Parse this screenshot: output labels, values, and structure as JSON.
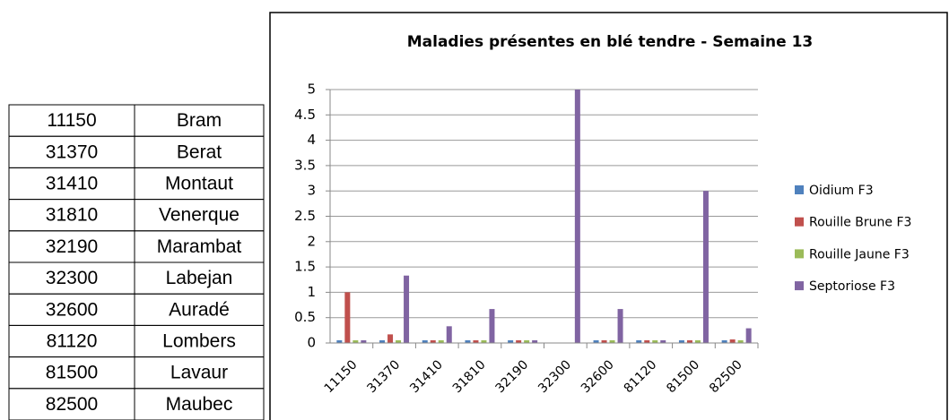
{
  "table": {
    "rows": [
      [
        "11150",
        "Bram"
      ],
      [
        "31370",
        "Berat"
      ],
      [
        "31410",
        "Montaut"
      ],
      [
        "31810",
        "Venerque"
      ],
      [
        "32190",
        "Marambat"
      ],
      [
        "32300",
        "Labejan"
      ],
      [
        "32600",
        "Auradé"
      ],
      [
        "81120",
        "Lombers"
      ],
      [
        "81500",
        "Lavaur"
      ],
      [
        "82500",
        "Maubec"
      ]
    ]
  },
  "chart_data": {
    "type": "bar",
    "title": "Maladies présentes en blé tendre - Semaine 13",
    "categories": [
      "11150",
      "31370",
      "31410",
      "31810",
      "32190",
      "32300",
      "32600",
      "81120",
      "81500",
      "82500"
    ],
    "series": [
      {
        "name": "Oidium F3",
        "color": "#4f81bd",
        "values": [
          0,
          0,
          0,
          0,
          0,
          null,
          0,
          0,
          0,
          0
        ]
      },
      {
        "name": "Rouille Brune F3",
        "color": "#c0504d",
        "values": [
          1,
          0.17,
          0,
          0,
          0,
          null,
          0,
          0,
          0,
          0.07
        ]
      },
      {
        "name": "Rouille Jaune F3",
        "color": "#9bbb59",
        "values": [
          0,
          0,
          0,
          0,
          0,
          null,
          0,
          0,
          0,
          0
        ]
      },
      {
        "name": "Septoriose F3",
        "color": "#8064a2",
        "values": [
          0,
          1.33,
          0.33,
          0.67,
          0,
          5,
          0.67,
          0,
          3,
          0.29
        ]
      }
    ],
    "ylim": [
      0,
      5
    ],
    "yticks": [
      0,
      0.5,
      1,
      1.5,
      2,
      2.5,
      3,
      3.5,
      4,
      4.5,
      5
    ],
    "grid": true,
    "legend": "right"
  }
}
